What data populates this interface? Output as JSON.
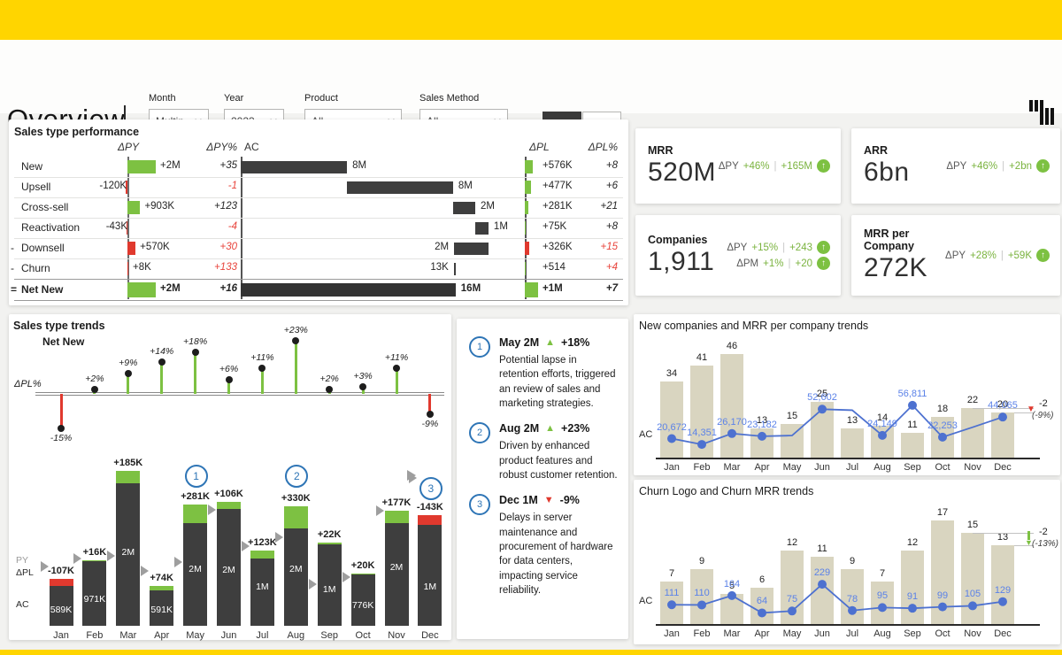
{
  "colors": {
    "accent_yellow": "#FFD500",
    "positive_green": "#7DC142",
    "negative_red": "#E0392E",
    "dark_bar": "#3E3E3E",
    "tan_bar": "#D9D5C0",
    "line_blue": "#4D71D0",
    "label_blue": "#5B82E8",
    "callout_blue": "#2E75B6",
    "red_text": "#E8443C",
    "gray_marker": "#9E9E9E"
  },
  "header": {
    "title": "Overview",
    "filters": [
      {
        "label": "Month",
        "value": "Multip..."
      },
      {
        "label": "Year",
        "value": "2023"
      },
      {
        "label": "Product",
        "value": "All"
      },
      {
        "label": "Sales Method",
        "value": "All"
      }
    ],
    "toggle": {
      "options": [
        "MRR",
        "ARR"
      ],
      "selected": "MRR"
    }
  },
  "performance": {
    "title": "Sales type performance",
    "headers": {
      "dpy": "ΔPY",
      "dpypct": "ΔPY%",
      "ac": "AC",
      "dpl": "ΔPL",
      "dplpct": "ΔPL%"
    },
    "rows": [
      {
        "prefix": "",
        "label": "New",
        "dpy": 2000,
        "dpy_label": "+2M",
        "dpy_red": false,
        "dpypct": "+35",
        "dpypct_red": false,
        "ac_from": 0,
        "ac_to": 0.417,
        "ac_label": "8M",
        "ac_side": "right",
        "dpl": 576,
        "dpl_label": "+576K",
        "dpl_red": false,
        "dplpct": "+8",
        "dplpct_red": false,
        "bold": false
      },
      {
        "prefix": "",
        "label": "Upsell",
        "dpy": -120,
        "dpy_label": "-120K",
        "dpy_red": true,
        "dpypct": "-1",
        "dpypct_red": true,
        "ac_from": 0.417,
        "ac_to": 0.833,
        "ac_label": "8M",
        "ac_side": "right",
        "dpl": 477,
        "dpl_label": "+477K",
        "dpl_red": false,
        "dplpct": "+6",
        "dplpct_red": false,
        "bold": false
      },
      {
        "prefix": "",
        "label": "Cross-sell",
        "dpy": 903,
        "dpy_label": "+903K",
        "dpy_red": false,
        "dpypct": "+123",
        "dpypct_red": false,
        "ac_from": 0.833,
        "ac_to": 0.92,
        "ac_label": "2M",
        "ac_side": "right",
        "dpl": 281,
        "dpl_label": "+281K",
        "dpl_red": false,
        "dplpct": "+21",
        "dplpct_red": false,
        "bold": false
      },
      {
        "prefix": "",
        "label": "Reactivation",
        "dpy": -43,
        "dpy_label": "-43K",
        "dpy_red": true,
        "dpypct": "-4",
        "dpypct_red": true,
        "ac_from": 0.92,
        "ac_to": 0.972,
        "ac_label": "1M",
        "ac_side": "right",
        "dpl": 75,
        "dpl_label": "+75K",
        "dpl_red": false,
        "dplpct": "+8",
        "dplpct_red": false,
        "bold": false
      },
      {
        "prefix": "-",
        "label": "Downsell",
        "dpy": 570,
        "dpy_label": "+570K",
        "dpy_red": true,
        "dpypct": "+30",
        "dpypct_red": true,
        "ac_from": 0.837,
        "ac_to": 0.972,
        "ac_label": "2M",
        "ac_side": "left",
        "dpl": 326,
        "dpl_label": "+326K",
        "dpl_red": true,
        "dplpct": "+15",
        "dplpct_red": true,
        "bold": false
      },
      {
        "prefix": "-",
        "label": "Churn",
        "dpy": 8,
        "dpy_label": "+8K",
        "dpy_red": true,
        "dpypct": "+133",
        "dpypct_red": true,
        "ac_from": 0.836,
        "ac_to": 0.838,
        "ac_label": "13K",
        "ac_side": "left",
        "dpl": 0.5,
        "dpl_label": "+514",
        "dpl_red": false,
        "dplpct": "+4",
        "dplpct_red": true,
        "bold": false
      },
      {
        "prefix": "=",
        "label": "Net New",
        "dpy": 2000,
        "dpy_label": "+2M",
        "dpy_red": false,
        "dpypct": "+16",
        "dpypct_red": false,
        "ac_from": 0,
        "ac_to": 0.843,
        "ac_label": "16M",
        "ac_side": "right",
        "dpl": 1000,
        "dpl_label": "+1M",
        "dpl_red": false,
        "dplpct": "+7",
        "dplpct_red": false,
        "bold": true
      }
    ]
  },
  "kpis": [
    {
      "title": "MRR",
      "value": "520M",
      "deltas": [
        {
          "label": "ΔPY",
          "pct": "+46%",
          "abs": "+165M"
        }
      ]
    },
    {
      "title": "ARR",
      "value": "6bn",
      "deltas": [
        {
          "label": "ΔPY",
          "pct": "+46%",
          "abs": "+2bn"
        }
      ]
    },
    {
      "title": "Companies",
      "value": "1,911",
      "deltas": [
        {
          "label": "ΔPY",
          "pct": "+15%",
          "abs": "+243"
        },
        {
          "label": "ΔPM",
          "pct": "+1%",
          "abs": "+20"
        }
      ]
    },
    {
      "title": "MRR per Company",
      "value": "272K",
      "deltas": [
        {
          "label": "ΔPY",
          "pct": "+28%",
          "abs": "+59K"
        }
      ]
    }
  ],
  "annotations": {
    "items": [
      {
        "n": "1",
        "head": "May 2M",
        "dir": "up",
        "pct": "+18%",
        "body": "Potential lapse in retention efforts, triggered an review of sales and marketing strategies."
      },
      {
        "n": "2",
        "head": "Aug 2M",
        "dir": "up",
        "pct": "+23%",
        "body": "Driven by enhanced product features and robust customer retention."
      },
      {
        "n": "3",
        "head": "Dec 1M",
        "dir": "down",
        "pct": "-9%",
        "body": "Delays in server maintenance and procurement of hardware for data centers, impacting service reliability."
      }
    ]
  },
  "chart_data": [
    {
      "id": "net_new_dpl_pct",
      "type": "lollipop",
      "title": "Sales type trends",
      "subtitle": "Net New",
      "ylabel": "ΔPL%",
      "categories": [
        "Jan",
        "Feb",
        "Mar",
        "Apr",
        "May",
        "Jun",
        "Jul",
        "Aug",
        "Sep",
        "Oct",
        "Nov",
        "Dec"
      ],
      "values": [
        -15,
        2,
        9,
        14,
        18,
        6,
        11,
        23,
        2,
        3,
        11,
        -9
      ],
      "labels": [
        "-15%",
        "+2%",
        "+9%",
        "+14%",
        "+18%",
        "+6%",
        "+11%",
        "+23%",
        "+2%",
        "+3%",
        "+11%",
        "-9%"
      ]
    },
    {
      "id": "net_new_monthly",
      "type": "bar",
      "left_labels": [
        "PY",
        "ΔPL",
        "AC"
      ],
      "categories": [
        "Jan",
        "Feb",
        "Mar",
        "Apr",
        "May",
        "Jun",
        "Jul",
        "Aug",
        "Sep",
        "Oct",
        "Nov",
        "Dec"
      ],
      "ac": [
        589,
        971,
        2283,
        591,
        1790,
        1828,
        1110,
        1763,
        1227,
        776,
        1697,
        1488
      ],
      "ac_labels": [
        "589K",
        "971K",
        "2M",
        "591K",
        "2M",
        "2M",
        "1M",
        "2M",
        "1M",
        "776K",
        "2M",
        "1M"
      ],
      "ac_label_h": [
        24,
        36,
        89,
        24,
        70,
        69,
        50,
        70,
        47,
        29,
        72,
        50
      ],
      "dpl": [
        -107,
        16,
        185,
        74,
        281,
        106,
        123,
        330,
        22,
        20,
        177,
        -143
      ],
      "dpl_labels": [
        "-107K",
        "+16K",
        "+185K",
        "+74K",
        "+281K",
        "+106K",
        "+123K",
        "+330K",
        "+22K",
        "+20K",
        "+177K",
        "-143K"
      ],
      "py": [
        875,
        990,
        1030,
        810,
        940,
        1710,
        1170,
        1300,
        610,
        720,
        1700,
        2180
      ],
      "callouts": [
        {
          "cat": "May",
          "n": "1"
        },
        {
          "cat": "Aug",
          "n": "2"
        },
        {
          "cat": "Dec",
          "n": "3"
        }
      ]
    },
    {
      "id": "companies_mrr",
      "type": "combo",
      "title": "New companies and MRR per company trends",
      "ylabel": "AC",
      "categories": [
        "Jan",
        "Feb",
        "Mar",
        "Apr",
        "May",
        "Jun",
        "Jul",
        "Aug",
        "Sep",
        "Oct",
        "Nov",
        "Dec"
      ],
      "bars": [
        34,
        41,
        46,
        13,
        15,
        25,
        13,
        14,
        11,
        18,
        22,
        20
      ],
      "line": [
        20672,
        14351,
        26170,
        23182,
        24000,
        52602,
        51500,
        24149,
        56811,
        22253,
        33000,
        44065
      ],
      "line_labels": [
        "20,672",
        "14,351",
        "26,170",
        "23,182",
        "",
        "52,602",
        "",
        "24,149",
        "56,811",
        "22,253",
        "",
        "44,065"
      ],
      "annotation": {
        "delta": "-2",
        "pct": "(-9%)",
        "style": "red-triangle"
      }
    },
    {
      "id": "churn",
      "type": "combo",
      "title": "Churn Logo and Churn MRR trends",
      "ylabel": "AC",
      "categories": [
        "Jan",
        "Feb",
        "Mar",
        "Apr",
        "May",
        "Jun",
        "Jul",
        "Aug",
        "Sep",
        "Oct",
        "Nov",
        "Dec"
      ],
      "bars": [
        7,
        9,
        5,
        6,
        12,
        11,
        9,
        7,
        12,
        17,
        15,
        13
      ],
      "line": [
        111,
        110,
        164,
        64,
        75,
        229,
        78,
        95,
        91,
        99,
        105,
        129
      ],
      "line_labels": [
        "111",
        "110",
        "164",
        "64",
        "75",
        "229",
        "78",
        "95",
        "91",
        "99",
        "105",
        "129"
      ],
      "annotation": {
        "delta": "-2",
        "pct": "(-13%)",
        "style": "green-arrow"
      }
    }
  ]
}
